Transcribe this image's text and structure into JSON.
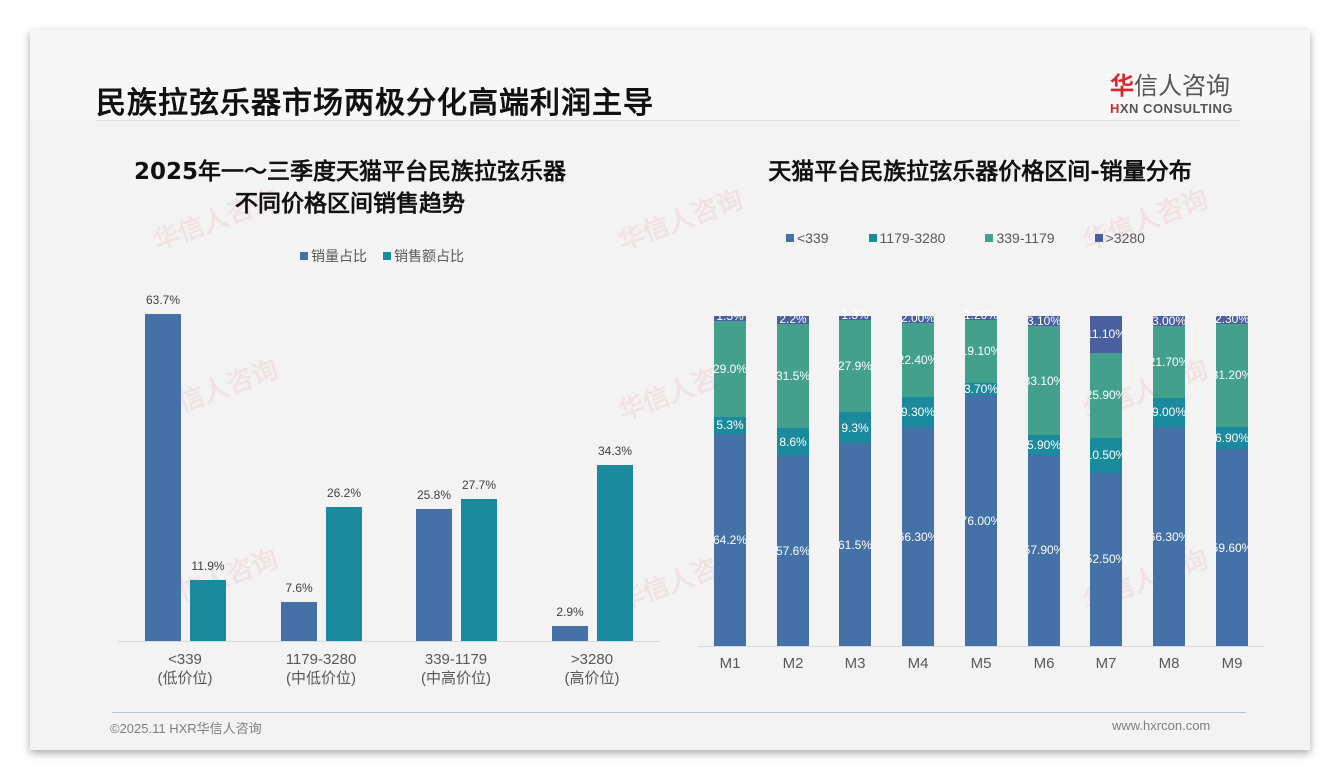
{
  "header": {
    "title": "民族拉弦乐器市场两极分化高端利润主导",
    "logo_cn_red": "华",
    "logo_cn_rest": "信人咨询",
    "logo_en_red": "H",
    "logo_en_rest": "XN CONSULTING"
  },
  "watermark": "华信人咨询",
  "footer": {
    "copyright": "©2025.11 HXR华信人咨询",
    "website": "www.hxrcon.com"
  },
  "colors": {
    "sales_volume": "#4472a8",
    "sales_amount": "#1a8a9e",
    "lt339": "#4472a8",
    "r1179_3280": "#1a8a9e",
    "r339_1179": "#43a08c",
    "gt3280": "#4a5fa0"
  },
  "left_chart": {
    "title_line1": "2025年一～三季度天猫平台民族拉弦乐器",
    "title_line2": "不同价格区间销售趋势",
    "legend": [
      "销量占比",
      "销售额占比"
    ],
    "categories": [
      {
        "range": "<339",
        "tier": "(低价位)",
        "volume": 63.7,
        "volume_label": "63.7%",
        "amount": 11.9,
        "amount_label": "11.9%"
      },
      {
        "range": "1179-3280",
        "tier": "(中低价位)",
        "volume": 7.6,
        "volume_label": "7.6%",
        "amount": 26.2,
        "amount_label": "26.2%"
      },
      {
        "range": "339-1179",
        "tier": "(中高价位)",
        "volume": 25.8,
        "volume_label": "25.8%",
        "amount": 27.7,
        "amount_label": "27.7%"
      },
      {
        "range": ">3280",
        "tier": "(高价位)",
        "volume": 2.9,
        "volume_label": "2.9%",
        "amount": 34.3,
        "amount_label": "34.3%"
      }
    ]
  },
  "right_chart": {
    "title": "天猫平台民族拉弦乐器价格区间-销量分布",
    "legend": [
      "<339",
      "1179-3280",
      "339-1179",
      ">3280"
    ],
    "months": [
      {
        "m": "M1",
        "lt339": "64.2%",
        "r1179": "5.3%",
        "r339": "29.0%",
        "gt3280": "1.5%"
      },
      {
        "m": "M2",
        "lt339": "57.6%",
        "r1179": "8.6%",
        "r339": "31.5%",
        "gt3280": "2.2%"
      },
      {
        "m": "M3",
        "lt339": "61.5%",
        "r1179": "9.3%",
        "r339": "27.9%",
        "gt3280": "1.3%"
      },
      {
        "m": "M4",
        "lt339": "66.30%",
        "r1179": "9.30%",
        "r339": "22.40%",
        "gt3280": "2.00%"
      },
      {
        "m": "M5",
        "lt339": "76.00%",
        "r1179": "3.70%",
        "r339": "19.10%",
        "gt3280": "1.20%"
      },
      {
        "m": "M6",
        "lt339": "57.90%",
        "r1179": "5.90%",
        "r339": "33.10%",
        "gt3280": "3.10%"
      },
      {
        "m": "M7",
        "lt339": "52.50%",
        "r1179": "10.50%",
        "r339": "25.90%",
        "gt3280": "11.10%"
      },
      {
        "m": "M8",
        "lt339": "66.30%",
        "r1179": "9.00%",
        "r339": "21.70%",
        "gt3280": "3.00%"
      },
      {
        "m": "M9",
        "lt339": "59.60%",
        "r1179": "6.90%",
        "r339": "31.20%",
        "gt3280": "2.30%"
      }
    ]
  },
  "chart_data": [
    {
      "type": "bar",
      "title": "2025年一～三季度天猫平台民族拉弦乐器不同价格区间销售趋势",
      "categories": [
        "<339 (低价位)",
        "1179-3280 (中低价位)",
        "339-1179 (中高价位)",
        ">3280 (高价位)"
      ],
      "series": [
        {
          "name": "销量占比",
          "values": [
            63.7,
            7.6,
            25.8,
            2.9
          ]
        },
        {
          "name": "销售额占比",
          "values": [
            11.9,
            26.2,
            27.7,
            34.3
          ]
        }
      ],
      "xlabel": "",
      "ylabel": "%",
      "ylim": [
        0,
        70
      ],
      "grid": false,
      "legend_position": "top"
    },
    {
      "type": "bar",
      "stacked": true,
      "title": "天猫平台民族拉弦乐器价格区间-销量分布",
      "categories": [
        "M1",
        "M2",
        "M3",
        "M4",
        "M5",
        "M6",
        "M7",
        "M8",
        "M9"
      ],
      "series": [
        {
          "name": "<339",
          "values": [
            64.2,
            57.6,
            61.5,
            66.3,
            76.0,
            57.9,
            52.5,
            66.3,
            59.6
          ]
        },
        {
          "name": "1179-3280",
          "values": [
            5.3,
            8.6,
            9.3,
            9.3,
            3.7,
            5.9,
            10.5,
            9.0,
            6.9
          ]
        },
        {
          "name": "339-1179",
          "values": [
            29.0,
            31.5,
            27.9,
            22.4,
            19.1,
            33.1,
            25.9,
            21.7,
            31.2
          ]
        },
        {
          "name": ">3280",
          "values": [
            1.5,
            2.2,
            1.3,
            2.0,
            1.2,
            3.1,
            11.1,
            3.0,
            2.3
          ]
        }
      ],
      "xlabel": "",
      "ylabel": "%",
      "ylim": [
        0,
        100
      ],
      "grid": false,
      "legend_position": "top"
    }
  ]
}
